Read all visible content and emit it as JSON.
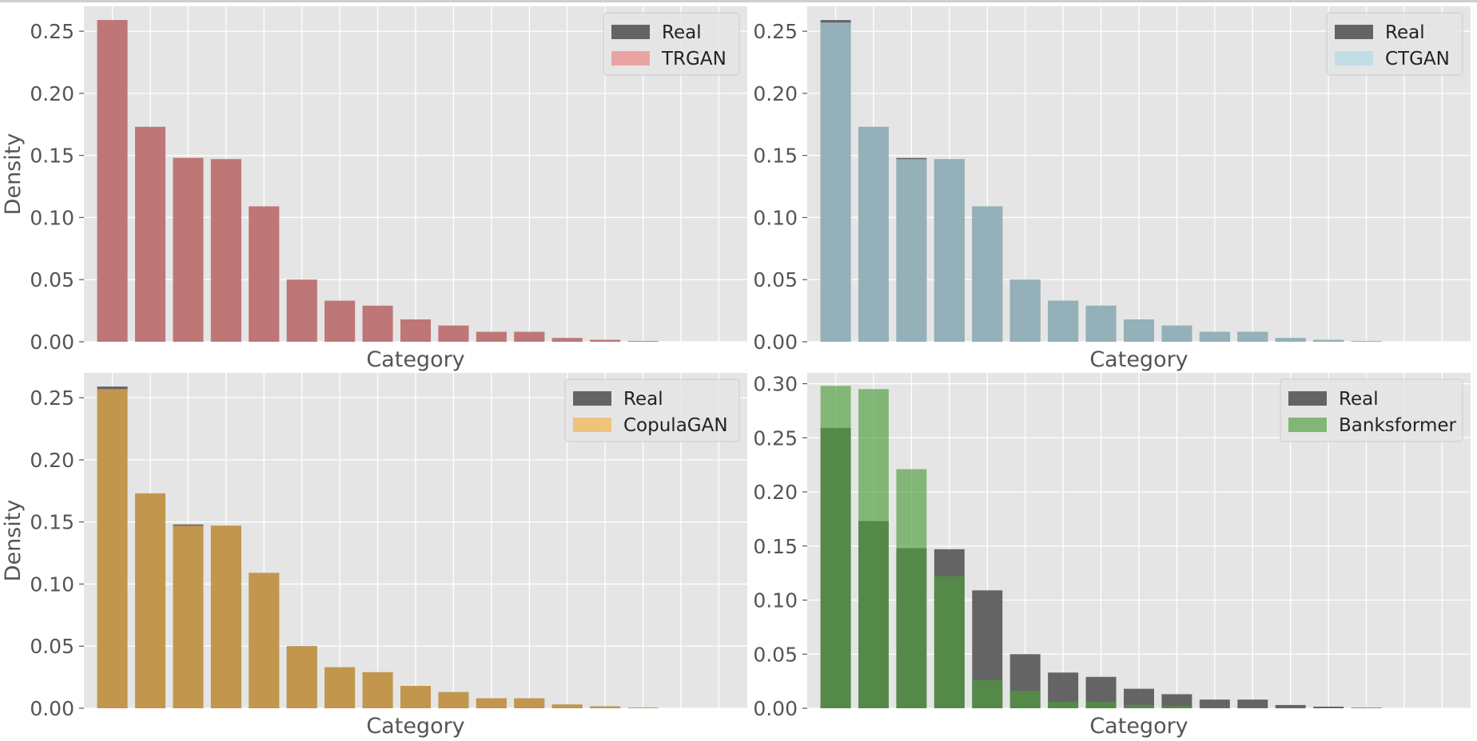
{
  "chart_data": [
    {
      "type": "bar",
      "xlabel": "Category",
      "ylabel": "Density",
      "ylim": [
        0,
        0.27
      ],
      "yticks": [
        0.0,
        0.05,
        0.1,
        0.15,
        0.2,
        0.25
      ],
      "ytick_labels": [
        "0.00",
        "0.05",
        "0.10",
        "0.15",
        "0.20",
        "0.25"
      ],
      "grid": true,
      "legend_position": "top-right",
      "series": [
        {
          "name": "Real",
          "color": "#555555",
          "values": [
            0.259,
            0.173,
            0.148,
            0.147,
            0.109,
            0.05,
            0.033,
            0.029,
            0.018,
            0.013,
            0.008,
            0.008,
            0.003,
            0.0015,
            0.0005
          ]
        },
        {
          "name": "TRGAN",
          "color": "#f08080",
          "values": [
            0.259,
            0.173,
            0.148,
            0.147,
            0.109,
            0.05,
            0.033,
            0.029,
            0.018,
            0.013,
            0.008,
            0.008,
            0.003,
            0.0015,
            0.0005
          ]
        }
      ]
    },
    {
      "type": "bar",
      "xlabel": "Category",
      "ylabel": "",
      "ylim": [
        0,
        0.27
      ],
      "yticks": [
        0.0,
        0.05,
        0.1,
        0.15,
        0.2,
        0.25
      ],
      "ytick_labels": [
        "0.00",
        "0.05",
        "0.10",
        "0.15",
        "0.20",
        "0.25"
      ],
      "grid": true,
      "legend_position": "top-right",
      "series": [
        {
          "name": "Real",
          "color": "#555555",
          "values": [
            0.259,
            0.173,
            0.148,
            0.147,
            0.109,
            0.05,
            0.033,
            0.029,
            0.018,
            0.013,
            0.008,
            0.008,
            0.003,
            0.0015,
            0.0005
          ]
        },
        {
          "name": "CTGAN",
          "color": "#add8e6",
          "values": [
            0.257,
            0.173,
            0.147,
            0.147,
            0.109,
            0.05,
            0.033,
            0.029,
            0.018,
            0.013,
            0.008,
            0.008,
            0.003,
            0.0015,
            0.0005
          ]
        }
      ]
    },
    {
      "type": "bar",
      "xlabel": "Category",
      "ylabel": "Density",
      "ylim": [
        0,
        0.27
      ],
      "yticks": [
        0.0,
        0.05,
        0.1,
        0.15,
        0.2,
        0.25
      ],
      "ytick_labels": [
        "0.00",
        "0.05",
        "0.10",
        "0.15",
        "0.20",
        "0.25"
      ],
      "grid": true,
      "legend_position": "top-right",
      "series": [
        {
          "name": "Real",
          "color": "#555555",
          "values": [
            0.259,
            0.173,
            0.148,
            0.147,
            0.109,
            0.05,
            0.033,
            0.029,
            0.018,
            0.013,
            0.008,
            0.008,
            0.003,
            0.0015,
            0.0005
          ]
        },
        {
          "name": "CopulaGAN",
          "color": "#f5b041",
          "values": [
            0.257,
            0.173,
            0.147,
            0.147,
            0.109,
            0.05,
            0.033,
            0.029,
            0.018,
            0.013,
            0.008,
            0.008,
            0.003,
            0.0015,
            0.0005
          ]
        }
      ]
    },
    {
      "type": "bar",
      "xlabel": "Category",
      "ylabel": "",
      "ylim": [
        0,
        0.31
      ],
      "yticks": [
        0.0,
        0.05,
        0.1,
        0.15,
        0.2,
        0.25,
        0.3
      ],
      "ytick_labels": [
        "0.00",
        "0.05",
        "0.10",
        "0.15",
        "0.20",
        "0.25",
        "0.30"
      ],
      "grid": true,
      "legend_position": "top-right",
      "series": [
        {
          "name": "Real",
          "color": "#555555",
          "values": [
            0.259,
            0.173,
            0.148,
            0.147,
            0.109,
            0.05,
            0.033,
            0.029,
            0.018,
            0.013,
            0.008,
            0.008,
            0.003,
            0.0015,
            0.0005
          ]
        },
        {
          "name": "Banksformer",
          "color": "#4d9c3c",
          "values": [
            0.298,
            0.295,
            0.221,
            0.122,
            0.026,
            0.016,
            0.006,
            0.006,
            0.003,
            0.002,
            0.0005,
            0.0005,
            0.0,
            0.0,
            0.0
          ]
        }
      ]
    }
  ]
}
